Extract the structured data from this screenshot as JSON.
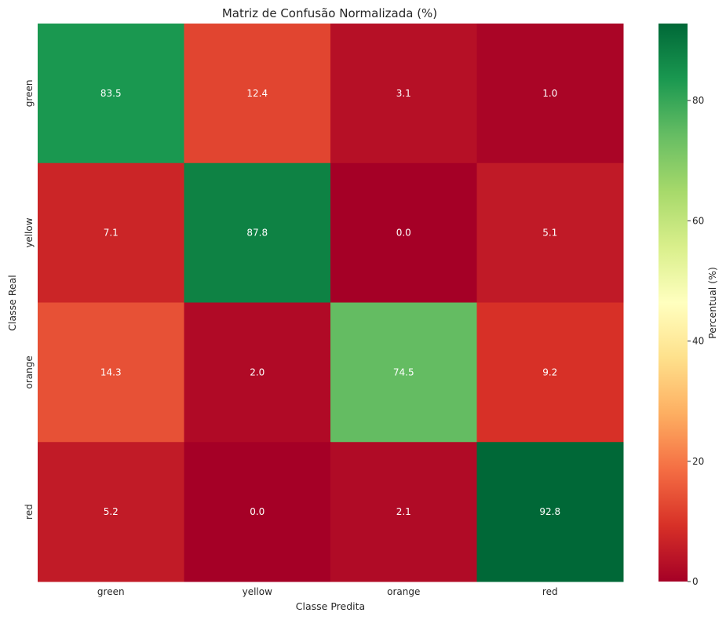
{
  "chart_data": {
    "type": "heatmap",
    "title": "Matriz de Confusão Normalizada (%)",
    "xlabel": "Classe Predita",
    "ylabel": "Classe Real",
    "x_categories": [
      "green",
      "yellow",
      "orange",
      "red"
    ],
    "y_categories": [
      "green",
      "yellow",
      "orange",
      "red"
    ],
    "values": [
      [
        83.5,
        12.4,
        3.1,
        1.0
      ],
      [
        7.1,
        87.8,
        0.0,
        5.1
      ],
      [
        14.3,
        2.0,
        74.5,
        9.2
      ],
      [
        5.2,
        0.0,
        2.1,
        92.8
      ]
    ],
    "value_labels": [
      [
        "83.5",
        "12.4",
        "3.1",
        "1.0"
      ],
      [
        "7.1",
        "87.8",
        "0.0",
        "5.1"
      ],
      [
        "14.3",
        "2.0",
        "74.5",
        "9.2"
      ],
      [
        "5.2",
        "0.0",
        "2.1",
        "92.8"
      ]
    ],
    "colormap": "RdYlGn",
    "colorbar": {
      "label": "Percentual (%)",
      "range": [
        0,
        92.8
      ],
      "ticks": [
        0,
        20,
        40,
        60,
        80
      ],
      "tick_labels": [
        "0",
        "20",
        "40",
        "60",
        "80"
      ]
    }
  }
}
